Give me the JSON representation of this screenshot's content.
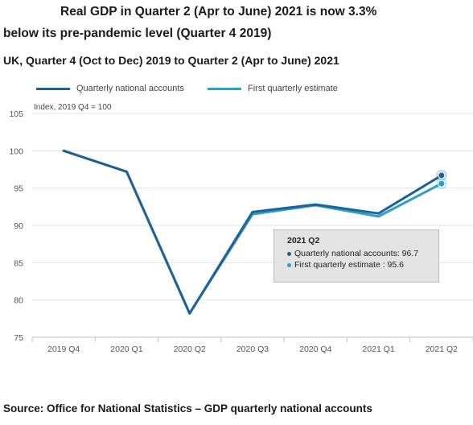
{
  "chart_data": {
    "type": "line",
    "title": "Real GDP in Quarter 2 (Apr to June) 2021 is now 3.3% below its pre-pandemic level (Quarter 4 2019)",
    "title_line1": "Real GDP in Quarter 2 (Apr to June) 2021 is now 3.3%",
    "title_line2": "below its pre-pandemic level (Quarter 4 2019)",
    "subtitle": "UK, Quarter 4 (Oct to Dec) 2019 to Quarter 2 (Apr to June) 2021",
    "ylabel": "Index, 2019 Q4 = 100",
    "xlabel": "",
    "categories": [
      "2019 Q4",
      "2020 Q1",
      "2020 Q2",
      "2020 Q3",
      "2020 Q4",
      "2021 Q1",
      "2021 Q2"
    ],
    "ylim": [
      75,
      105
    ],
    "yticks": [
      75,
      80,
      85,
      90,
      95,
      100,
      105
    ],
    "grid": "horizontal",
    "legend_position": "top-left",
    "series": [
      {
        "name": "Quarterly national accounts",
        "color": "#206095",
        "values": [
          100,
          97.2,
          78.2,
          91.8,
          92.8,
          91.6,
          96.7
        ]
      },
      {
        "name": "First quarterly estimate",
        "color": "#27A0CC",
        "values": [
          100,
          97.2,
          78.2,
          91.5,
          92.7,
          91.2,
          95.6
        ]
      }
    ],
    "tooltip": {
      "title": "2021 Q2",
      "rows": [
        {
          "label": "Quarterly national accounts: 96.7",
          "color": "#206095"
        },
        {
          "label": "First quarterly estimate : 95.6",
          "color": "#27A0CC"
        }
      ]
    }
  },
  "source": "Source: Office for National Statistics – GDP quarterly national accounts"
}
